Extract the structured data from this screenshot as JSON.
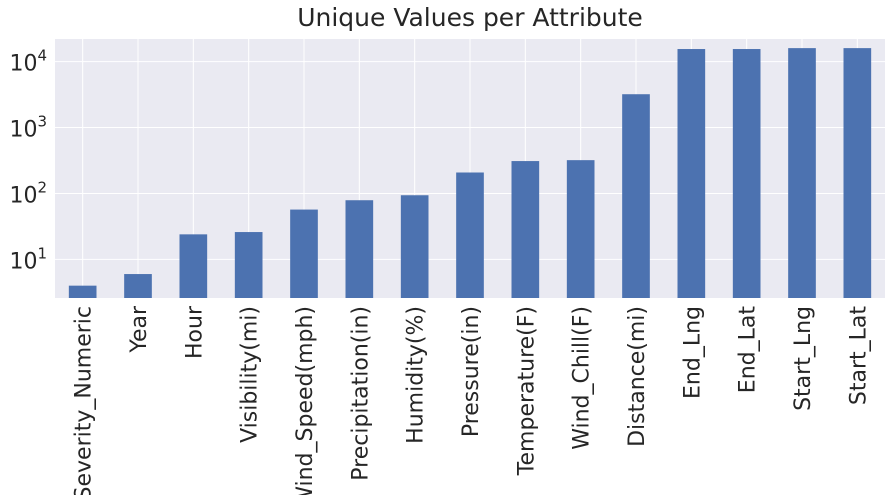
{
  "chart_data": {
    "type": "bar",
    "title": "Unique Values per Attribute",
    "xlabel": "",
    "ylabel": "",
    "yscale": "log",
    "ylim": [
      2.6,
      22000
    ],
    "grid": true,
    "bar_color": "#4c72b0",
    "background_color": "#eaeaf2",
    "categories": [
      "Severity_Numeric",
      "Year",
      "Hour",
      "Visibility(mi)",
      "Wind_Speed(mph)",
      "Precipitation(in)",
      "Humidity(%)",
      "Pressure(in)",
      "Temperature(F)",
      "Wind_Chill(F)",
      "Distance(mi)",
      "End_Lng",
      "End_Lat",
      "Start_Lng",
      "Start_Lat"
    ],
    "values": [
      4,
      6,
      24,
      26,
      57,
      79,
      94,
      208,
      310,
      320,
      3200,
      15500,
      15500,
      16000,
      16000
    ],
    "y_ticks": [
      {
        "value": 10,
        "base": "10",
        "exp": "1"
      },
      {
        "value": 100,
        "base": "10",
        "exp": "2"
      },
      {
        "value": 1000,
        "base": "10",
        "exp": "3"
      },
      {
        "value": 10000,
        "base": "10",
        "exp": "4"
      }
    ]
  }
}
